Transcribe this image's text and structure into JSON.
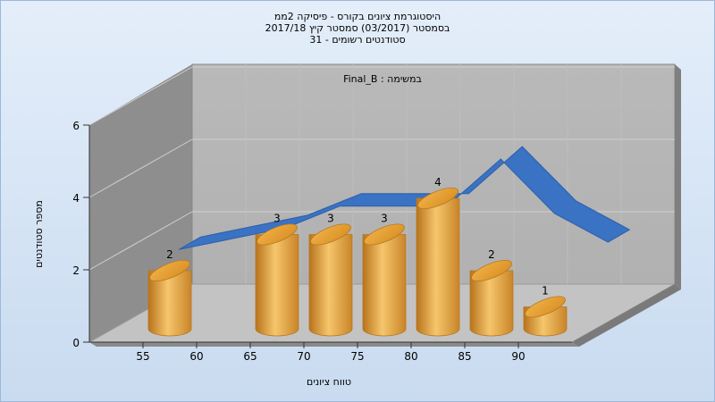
{
  "chart_data": {
    "type": "bar",
    "title_lines": [
      "היסטוגרמת ציונים בקורס - פיסיקה 2ממ",
      "בסמסטר (03/2017) סמסטר קיץ 2017/18",
      "סטודנטים רשומים - 31"
    ],
    "subtitle": "במשימה : Final_B",
    "xlabel": "טווח ציונים",
    "ylabel": "מספר סטודנטים",
    "x_ticks": [
      "55",
      "60",
      "65",
      "70",
      "75",
      "80",
      "85",
      "90"
    ],
    "categories": [
      55,
      65,
      70,
      75,
      80,
      85,
      90
    ],
    "values": [
      2,
      3,
      3,
      3,
      4,
      2,
      1
    ],
    "y_ticks": [
      "0",
      "2",
      "4",
      "6"
    ],
    "ylim": [
      0,
      6
    ],
    "series": [
      {
        "type": "bar",
        "values": [
          2,
          3,
          3,
          3,
          4,
          2,
          1
        ]
      },
      {
        "type": "line",
        "x": [
          55,
          65,
          70,
          75,
          80,
          85,
          90,
          95
        ],
        "values": [
          2.0,
          2.6,
          3.2,
          3.2,
          3.2,
          4.5,
          3.0,
          2.2
        ]
      }
    ],
    "grid": true,
    "colors": {
      "bar": "#e8a33a",
      "curve": "#3a72c4"
    }
  }
}
